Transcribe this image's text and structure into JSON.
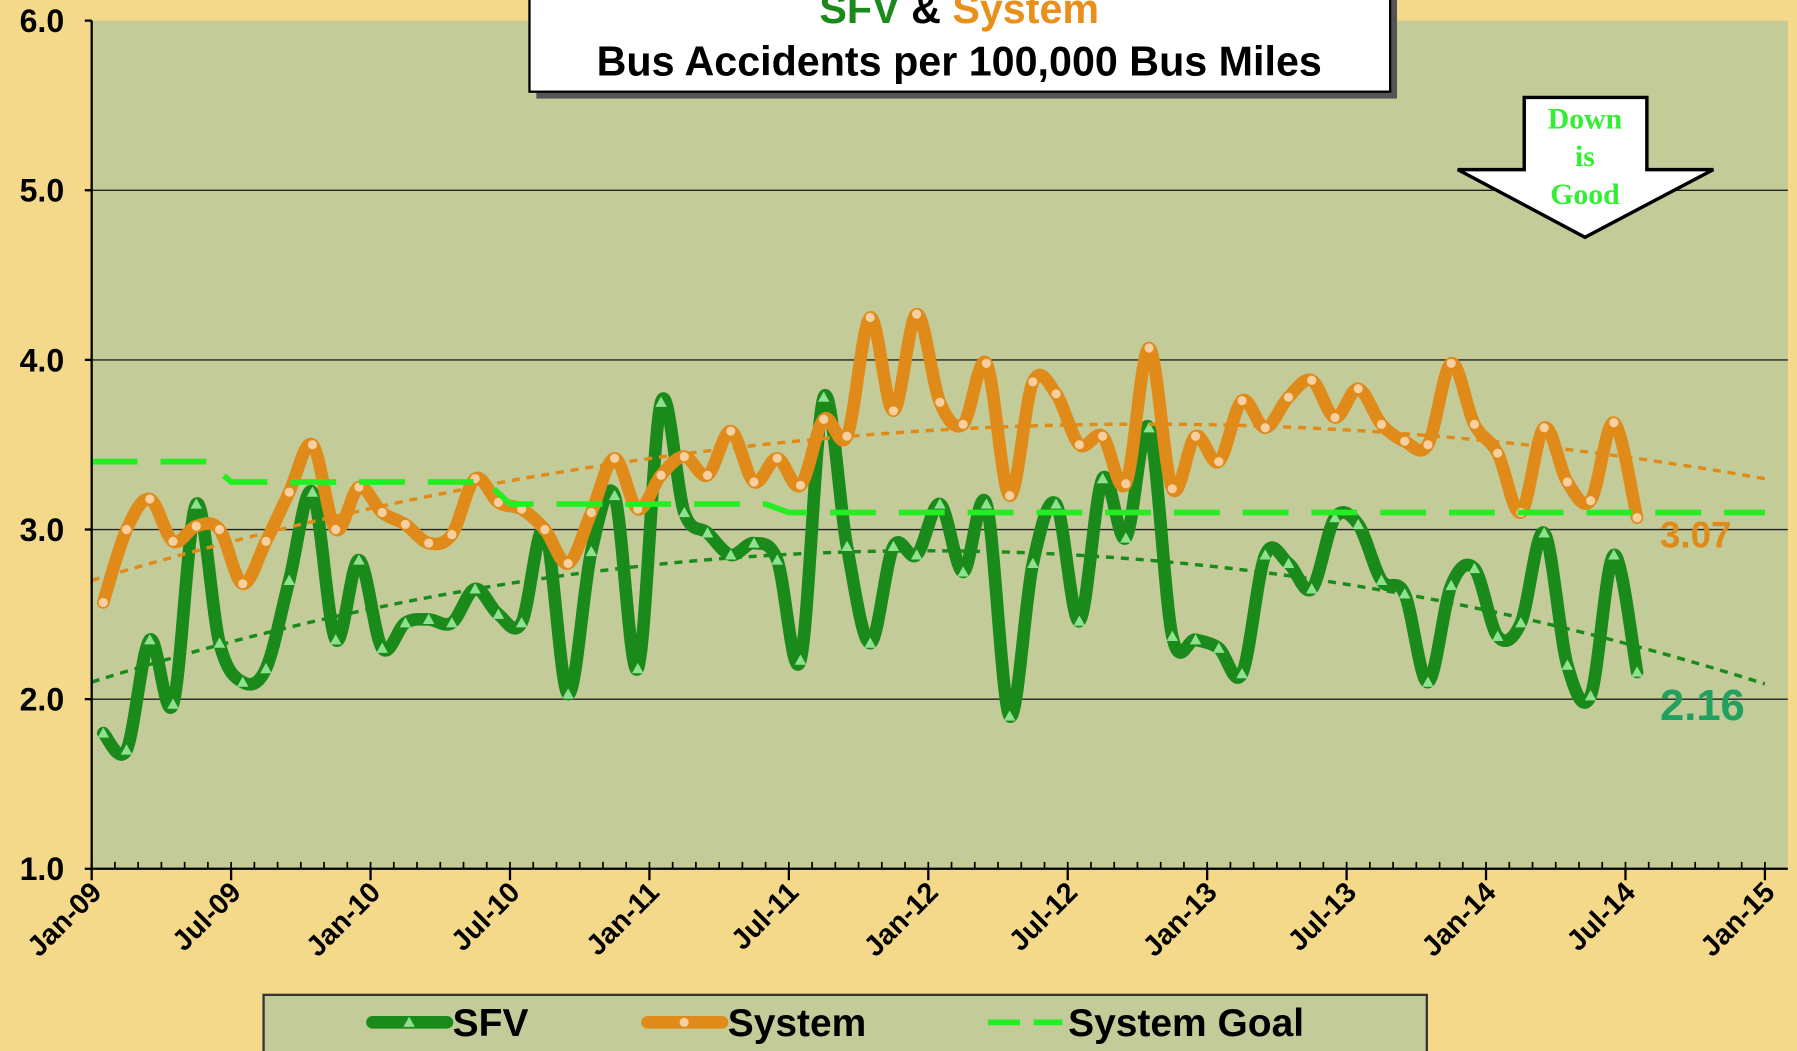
{
  "chart_data": {
    "type": "line",
    "title_parts": [
      {
        "text": "SFV",
        "color": "#1a8a1a"
      },
      {
        "text": "&",
        "color": "#000000"
      },
      {
        "text": "System",
        "color": "#e8901a"
      }
    ],
    "subtitle": "Bus Accidents per 100,000 Bus Miles",
    "callout": [
      "Down",
      "is",
      "Good"
    ],
    "x": [
      "2009-01",
      "2009-02",
      "2009-03",
      "2009-04",
      "2009-05",
      "2009-06",
      "2009-07",
      "2009-08",
      "2009-09",
      "2009-10",
      "2009-11",
      "2009-12",
      "2010-01",
      "2010-02",
      "2010-03",
      "2010-04",
      "2010-05",
      "2010-06",
      "2010-07",
      "2010-08",
      "2010-09",
      "2010-10",
      "2010-11",
      "2010-12",
      "2011-01",
      "2011-02",
      "2011-03",
      "2011-04",
      "2011-05",
      "2011-06",
      "2011-07",
      "2011-08",
      "2011-09",
      "2011-10",
      "2011-11",
      "2011-12",
      "2012-01",
      "2012-02",
      "2012-03",
      "2012-04",
      "2012-05",
      "2012-06",
      "2012-07",
      "2012-08",
      "2012-09",
      "2012-10",
      "2012-11",
      "2012-12",
      "2013-01",
      "2013-02",
      "2013-03",
      "2013-04",
      "2013-05",
      "2013-06",
      "2013-07",
      "2013-08",
      "2013-09",
      "2013-10",
      "2013-11",
      "2013-12",
      "2014-01",
      "2014-02",
      "2014-03",
      "2014-04",
      "2014-05",
      "2014-06",
      "2014-07"
    ],
    "series": [
      {
        "name": "SFV",
        "color": "#1a8a1a",
        "marker": "triangle",
        "end_label": "2.16",
        "end_label_color": "#22a060",
        "values": [
          1.8,
          1.7,
          2.35,
          1.97,
          3.15,
          2.33,
          2.1,
          2.18,
          2.7,
          3.22,
          2.35,
          2.82,
          2.3,
          2.45,
          2.47,
          2.45,
          2.65,
          2.5,
          2.45,
          3.0,
          2.03,
          2.87,
          3.2,
          2.18,
          3.75,
          3.1,
          2.98,
          2.85,
          2.92,
          2.82,
          2.23,
          3.78,
          2.9,
          2.33,
          2.9,
          2.85,
          3.15,
          2.75,
          3.15,
          1.9,
          2.8,
          3.15,
          2.46,
          3.3,
          2.95,
          3.6,
          2.37,
          2.35,
          2.3,
          2.15,
          2.85,
          2.8,
          2.65,
          3.07,
          3.03,
          2.7,
          2.62,
          2.1,
          2.67,
          2.77,
          2.37,
          2.45,
          2.98,
          2.2,
          2.02,
          2.85,
          2.16
        ]
      },
      {
        "name": "System",
        "color": "#e08a1a",
        "marker": "circle",
        "end_label": "3.07",
        "end_label_color": "#e08a1a",
        "values": [
          2.57,
          3.0,
          3.18,
          2.93,
          3.02,
          3.0,
          2.68,
          2.93,
          3.22,
          3.5,
          3.0,
          3.25,
          3.1,
          3.03,
          2.92,
          2.97,
          3.3,
          3.16,
          3.12,
          3.0,
          2.8,
          3.1,
          3.42,
          3.12,
          3.32,
          3.43,
          3.32,
          3.58,
          3.28,
          3.42,
          3.26,
          3.65,
          3.55,
          4.25,
          3.7,
          4.27,
          3.75,
          3.62,
          3.98,
          3.2,
          3.87,
          3.8,
          3.5,
          3.55,
          3.27,
          4.07,
          3.24,
          3.55,
          3.4,
          3.76,
          3.6,
          3.78,
          3.88,
          3.66,
          3.83,
          3.62,
          3.52,
          3.5,
          3.98,
          3.62,
          3.45,
          3.1,
          3.6,
          3.28,
          3.17,
          3.63,
          3.07
        ]
      },
      {
        "name": "System Goal",
        "color": "#22ee22",
        "marker": "dash",
        "x": [
          "2009-01",
          "2009-06",
          "2009-07",
          "2010-06",
          "2010-07",
          "2011-06",
          "2011-07",
          "2015-01"
        ],
        "values": [
          3.4,
          3.4,
          3.28,
          3.28,
          3.15,
          3.15,
          3.1,
          3.1
        ]
      }
    ],
    "trendline": "polynomial",
    "xlim": [
      "2009-01",
      "2015-01"
    ],
    "xticks": [
      {
        "value": "2009-01",
        "label": "Jan-09"
      },
      {
        "value": "2009-07",
        "label": "Jul-09"
      },
      {
        "value": "2010-01",
        "label": "Jan-10"
      },
      {
        "value": "2010-07",
        "label": "Jul-10"
      },
      {
        "value": "2011-01",
        "label": "Jan-11"
      },
      {
        "value": "2011-07",
        "label": "Jul-11"
      },
      {
        "value": "2012-01",
        "label": "Jan-12"
      },
      {
        "value": "2012-07",
        "label": "Jul-12"
      },
      {
        "value": "2013-01",
        "label": "Jan-13"
      },
      {
        "value": "2013-07",
        "label": "Jul-13"
      },
      {
        "value": "2014-01",
        "label": "Jan-14"
      },
      {
        "value": "2014-07",
        "label": "Jul-14"
      },
      {
        "value": "2015-01",
        "label": "Jan-15"
      }
    ],
    "ylim": [
      1,
      6
    ],
    "yticks": [
      {
        "value": 1,
        "label": "1.0"
      },
      {
        "value": 2,
        "label": "2.0"
      },
      {
        "value": 3,
        "label": "3.0"
      },
      {
        "value": 4,
        "label": "4.0"
      },
      {
        "value": 5,
        "label": "5.0"
      },
      {
        "value": 6,
        "label": "6.0"
      }
    ],
    "grid": true,
    "legend": "bottom"
  }
}
